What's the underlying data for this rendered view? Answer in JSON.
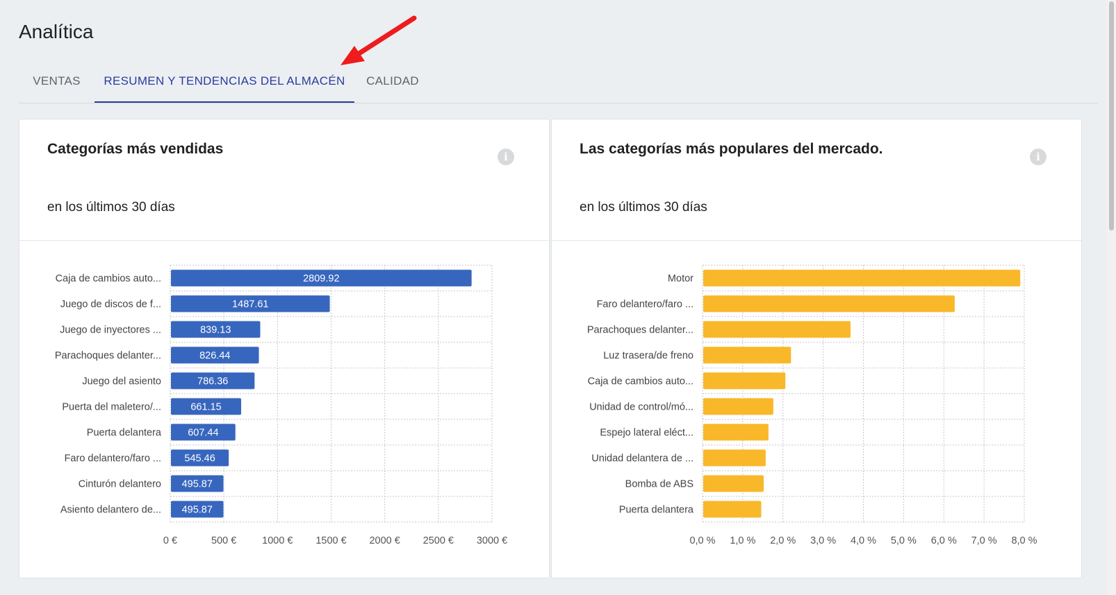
{
  "page": {
    "title": "Analítica"
  },
  "tabs": [
    {
      "label": "VENTAS",
      "active": false
    },
    {
      "label": "RESUMEN Y TENDENCIAS DEL ALMACÉN",
      "active": true
    },
    {
      "label": "CALIDAD",
      "active": false
    }
  ],
  "cards": [
    {
      "title": "Categorías más vendidas",
      "subtitle": "en los últimos 30 días",
      "info_icon": "info-icon"
    },
    {
      "title": "Las categorías más populares del mercado.",
      "subtitle": "en los últimos 30 días",
      "info_icon": "info-icon"
    }
  ],
  "colors": {
    "accent": "#2b3a9e",
    "bar_blue": "#3766be",
    "bar_yellow": "#f9b72a",
    "arrow": "#ee1c1c"
  },
  "chart_data": [
    {
      "type": "bar",
      "orientation": "horizontal",
      "categories": [
        "Caja de cambios auto...",
        "Juego de discos de f...",
        "Juego de inyectores ...",
        "Parachoques delanter...",
        "Juego del asiento",
        "Puerta del maletero/...",
        "Puerta delantera",
        "Faro delantero/faro ...",
        "Cinturón delantero",
        "Asiento delantero de..."
      ],
      "values": [
        2809.92,
        1487.61,
        839.13,
        826.44,
        786.36,
        661.15,
        607.44,
        545.46,
        495.87,
        495.87
      ],
      "data_labels": [
        "2809.92",
        "1487.61",
        "839.13",
        "826.44",
        "786.36",
        "661.15",
        "607.44",
        "545.46",
        "495.87",
        "495.87"
      ],
      "xticks": [
        "0 €",
        "500 €",
        "1000 €",
        "1500 €",
        "2000 €",
        "2500 €",
        "3000 €"
      ],
      "xlim": [
        0,
        3000
      ],
      "grid": true,
      "color": "#3766be"
    },
    {
      "type": "bar",
      "orientation": "horizontal",
      "categories": [
        "Motor",
        "Faro delantero/faro ...",
        "Parachoques delanter...",
        "Luz trasera/de freno",
        "Caja de cambios auto...",
        "Unidad de control/mó...",
        "Espejo lateral eléct...",
        "Unidad delantera de ...",
        "Bomba de ABS",
        "Puerta delantera"
      ],
      "values": [
        7.9,
        6.27,
        3.68,
        2.2,
        2.06,
        1.76,
        1.64,
        1.57,
        1.52,
        1.46
      ],
      "xticks": [
        "0,0 %",
        "1,0 %",
        "2,0 %",
        "3,0 %",
        "4,0 %",
        "5,0 %",
        "6,0 %",
        "7,0 %",
        "8,0 %"
      ],
      "xlim": [
        0,
        8
      ],
      "grid": true,
      "color": "#f9b72a"
    }
  ]
}
